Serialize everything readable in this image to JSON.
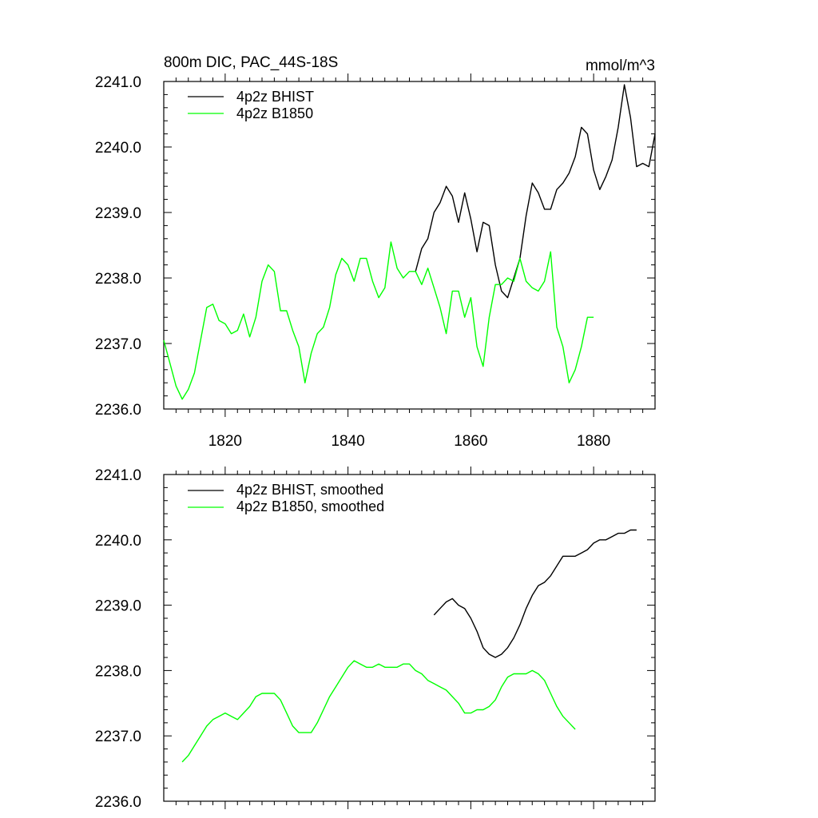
{
  "chart_data": [
    {
      "type": "line",
      "title_left": "800m DIC, PAC_44S-18S",
      "title_right": "mmol/m^3",
      "xlim": [
        1810,
        1890
      ],
      "ylim": [
        2236.0,
        2241.0
      ],
      "x_ticks": [
        1820,
        1840,
        1860,
        1880
      ],
      "x_tick_labels": [
        "1820",
        "1840",
        "1860",
        "1880"
      ],
      "y_ticks": [
        2236.0,
        2237.0,
        2238.0,
        2239.0,
        2240.0,
        2241.0
      ],
      "y_tick_labels": [
        "2236.0",
        "2237.0",
        "2238.0",
        "2239.0",
        "2240.0",
        "2241.0"
      ],
      "series": [
        {
          "name": "4p2z BHIST",
          "color": "#000000",
          "x": [
            1851,
            1852,
            1853,
            1854,
            1855,
            1856,
            1857,
            1858,
            1859,
            1860,
            1861,
            1862,
            1863,
            1864,
            1865,
            1866,
            1867,
            1868,
            1869,
            1870,
            1871,
            1872,
            1873,
            1874,
            1875,
            1876,
            1877,
            1878,
            1879,
            1880,
            1881,
            1882,
            1883,
            1884,
            1885,
            1886,
            1887,
            1888,
            1889,
            1890
          ],
          "values": [
            2238.1,
            2238.45,
            2238.6,
            2239.0,
            2239.15,
            2239.4,
            2239.25,
            2238.85,
            2239.3,
            2238.9,
            2238.4,
            2238.85,
            2238.8,
            2238.2,
            2237.8,
            2237.7,
            2238.0,
            2238.3,
            2238.95,
            2239.45,
            2239.3,
            2239.05,
            2239.05,
            2239.35,
            2239.45,
            2239.6,
            2239.85,
            2240.3,
            2240.2,
            2239.65,
            2239.35,
            2239.55,
            2239.8,
            2240.3,
            2240.95,
            2240.45,
            2239.7,
            2239.75,
            2239.7,
            2240.2
          ]
        },
        {
          "name": "4p2z B1850",
          "color": "#00ff00",
          "x": [
            1810,
            1811,
            1812,
            1813,
            1814,
            1815,
            1816,
            1817,
            1818,
            1819,
            1820,
            1821,
            1822,
            1823,
            1824,
            1825,
            1826,
            1827,
            1828,
            1829,
            1830,
            1831,
            1832,
            1833,
            1834,
            1835,
            1836,
            1837,
            1838,
            1839,
            1840,
            1841,
            1842,
            1843,
            1844,
            1845,
            1846,
            1847,
            1848,
            1849,
            1850,
            1851,
            1852,
            1853,
            1854,
            1855,
            1856,
            1857,
            1858,
            1859,
            1860,
            1861,
            1862,
            1863,
            1864,
            1865,
            1866,
            1867,
            1868,
            1869,
            1870,
            1871,
            1872,
            1873,
            1874,
            1875,
            1876,
            1877,
            1878,
            1879,
            1880
          ],
          "values": [
            2237.05,
            2236.7,
            2236.35,
            2236.15,
            2236.3,
            2236.55,
            2237.05,
            2237.55,
            2237.6,
            2237.35,
            2237.3,
            2237.15,
            2237.2,
            2237.45,
            2237.1,
            2237.4,
            2237.95,
            2238.2,
            2238.1,
            2237.5,
            2237.5,
            2237.2,
            2236.95,
            2236.4,
            2236.85,
            2237.15,
            2237.25,
            2237.55,
            2238.05,
            2238.3,
            2238.2,
            2237.95,
            2238.3,
            2238.3,
            2237.95,
            2237.7,
            2237.85,
            2238.55,
            2238.15,
            2238.0,
            2238.1,
            2238.1,
            2237.9,
            2238.15,
            2237.85,
            2237.55,
            2237.15,
            2237.8,
            2237.8,
            2237.4,
            2237.7,
            2236.95,
            2236.65,
            2237.4,
            2237.9,
            2237.9,
            2238.0,
            2237.95,
            2238.3,
            2237.95,
            2237.85,
            2237.8,
            2237.95,
            2238.4,
            2237.25,
            2236.95,
            2236.4,
            2236.6,
            2236.95,
            2237.4,
            2237.4
          ]
        }
      ]
    },
    {
      "type": "line",
      "xlim": [
        1810,
        1890
      ],
      "ylim": [
        2236.0,
        2241.0
      ],
      "x_ticks": [
        1820,
        1840,
        1860,
        1880
      ],
      "y_ticks": [
        2236.0,
        2237.0,
        2238.0,
        2239.0,
        2240.0,
        2241.0
      ],
      "y_tick_labels": [
        "2236.0",
        "2237.0",
        "2238.0",
        "2239.0",
        "2240.0",
        "2241.0"
      ],
      "series": [
        {
          "name": "4p2z BHIST, smoothed",
          "color": "#000000",
          "x": [
            1854,
            1855,
            1856,
            1857,
            1858,
            1859,
            1860,
            1861,
            1862,
            1863,
            1864,
            1865,
            1866,
            1867,
            1868,
            1869,
            1870,
            1871,
            1872,
            1873,
            1874,
            1875,
            1876,
            1877,
            1878,
            1879,
            1880,
            1881,
            1882,
            1883,
            1884,
            1885,
            1886,
            1887
          ],
          "values": [
            2238.85,
            2238.95,
            2239.05,
            2239.1,
            2239.0,
            2238.95,
            2238.8,
            2238.6,
            2238.35,
            2238.25,
            2238.2,
            2238.25,
            2238.35,
            2238.5,
            2238.7,
            2238.95,
            2239.15,
            2239.3,
            2239.35,
            2239.45,
            2239.6,
            2239.75,
            2239.75,
            2239.75,
            2239.8,
            2239.85,
            2239.95,
            2240.0,
            2240.0,
            2240.05,
            2240.1,
            2240.1,
            2240.15,
            2240.15
          ]
        },
        {
          "name": "4p2z B1850, smoothed",
          "color": "#00ff00",
          "x": [
            1813,
            1814,
            1815,
            1816,
            1817,
            1818,
            1819,
            1820,
            1821,
            1822,
            1823,
            1824,
            1825,
            1826,
            1827,
            1828,
            1829,
            1830,
            1831,
            1832,
            1833,
            1834,
            1835,
            1836,
            1837,
            1838,
            1839,
            1840,
            1841,
            1842,
            1843,
            1844,
            1845,
            1846,
            1847,
            1848,
            1849,
            1850,
            1851,
            1852,
            1853,
            1854,
            1855,
            1856,
            1857,
            1858,
            1859,
            1860,
            1861,
            1862,
            1863,
            1864,
            1865,
            1866,
            1867,
            1868,
            1869,
            1870,
            1871,
            1872,
            1873,
            1874,
            1875,
            1876,
            1877
          ],
          "values": [
            2236.6,
            2236.7,
            2236.85,
            2237.0,
            2237.15,
            2237.25,
            2237.3,
            2237.35,
            2237.3,
            2237.25,
            2237.35,
            2237.45,
            2237.6,
            2237.65,
            2237.65,
            2237.65,
            2237.55,
            2237.35,
            2237.15,
            2237.05,
            2237.05,
            2237.05,
            2237.2,
            2237.4,
            2237.6,
            2237.75,
            2237.9,
            2238.05,
            2238.15,
            2238.1,
            2238.05,
            2238.05,
            2238.1,
            2238.05,
            2238.05,
            2238.05,
            2238.1,
            2238.1,
            2238.0,
            2237.95,
            2237.85,
            2237.8,
            2237.75,
            2237.7,
            2237.6,
            2237.5,
            2237.35,
            2237.35,
            2237.4,
            2237.4,
            2237.45,
            2237.55,
            2237.75,
            2237.9,
            2237.95,
            2237.95,
            2237.95,
            2238.0,
            2237.95,
            2237.85,
            2237.65,
            2237.45,
            2237.3,
            2237.2,
            2237.1
          ]
        }
      ]
    }
  ]
}
